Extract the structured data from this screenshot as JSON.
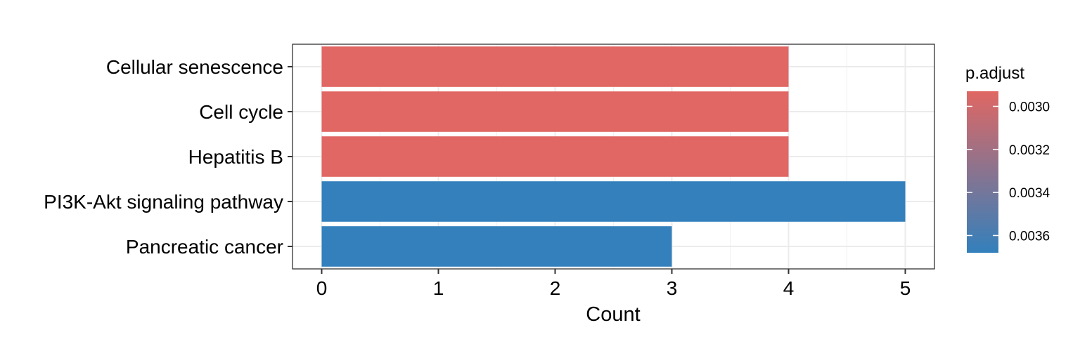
{
  "chart_data": {
    "type": "bar",
    "orientation": "horizontal",
    "categories": [
      "Cellular senescence",
      "Cell cycle",
      "Hepatitis B",
      "PI3K-Akt signaling pathway",
      "Pancreatic cancer"
    ],
    "values": [
      4,
      4,
      4,
      5,
      3
    ],
    "p_adjust": [
      0.00293,
      0.00293,
      0.00293,
      0.00368,
      0.00368
    ],
    "xlabel": "Count",
    "ylabel": "",
    "title": "",
    "xlim": [
      -0.25,
      5.25
    ],
    "xticks": [
      0,
      1,
      2,
      3,
      4,
      5
    ],
    "grid": true,
    "legend": {
      "title": "p.adjust",
      "position": "right",
      "type": "colorbar",
      "range": [
        0.00293,
        0.00368
      ],
      "ticks": [
        {
          "value": 0.003,
          "label": "0.0030"
        },
        {
          "value": 0.0032,
          "label": "0.0032"
        },
        {
          "value": 0.0034,
          "label": "0.0034"
        },
        {
          "value": 0.0036,
          "label": "0.0036"
        }
      ],
      "color_low": "#e06763",
      "color_high": "#3380bc"
    }
  }
}
